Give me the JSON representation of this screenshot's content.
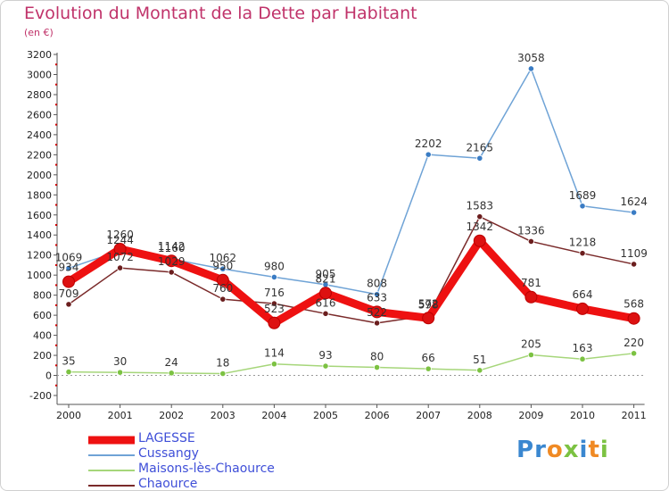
{
  "header": {
    "title": "Evolution du Montant de la Dette par Habitant",
    "subtitle": "(en €)"
  },
  "logo": {
    "text": "Proxiti",
    "letters": [
      {
        "ch": "P",
        "color": "#3a87d0"
      },
      {
        "ch": "r",
        "color": "#3a87d0"
      },
      {
        "ch": "o",
        "color": "#f08a24"
      },
      {
        "ch": "x",
        "color": "#7cc242"
      },
      {
        "ch": "i",
        "color": "#3a87d0"
      },
      {
        "ch": "t",
        "color": "#f08a24"
      },
      {
        "ch": "i",
        "color": "#7cc242"
      }
    ]
  },
  "chart_data": {
    "type": "line",
    "x": [
      "2000",
      "2001",
      "2002",
      "2003",
      "2004",
      "2005",
      "2006",
      "2007",
      "2008",
      "2009",
      "2010",
      "2011"
    ],
    "ylim": [
      -200,
      3200
    ],
    "yticks": [
      -200,
      0,
      200,
      400,
      600,
      800,
      1000,
      1200,
      1400,
      1600,
      1800,
      2000,
      2200,
      2400,
      2600,
      2800,
      3000,
      3200
    ],
    "grid": false,
    "legend_position": "bottom-left",
    "series": [
      {
        "name": "Cussangy",
        "color": "#6fa3d6",
        "marker": "#3a7cc4",
        "values": [
          1069,
          1244,
          1160,
          1062,
          980,
          905,
          808,
          2202,
          2165,
          3058,
          1689,
          1624
        ]
      },
      {
        "name": "Maisons-lès-Chaource",
        "color": "#a6d67a",
        "marker": "#7cc242",
        "values": [
          35,
          30,
          24,
          18,
          114,
          93,
          80,
          66,
          51,
          205,
          163,
          220
        ]
      },
      {
        "name": "Chaource",
        "color": "#7a2a2a",
        "marker": "#6b1e1e",
        "values": [
          709,
          1072,
          1029,
          760,
          716,
          616,
          522,
          598,
          1583,
          1336,
          1218,
          1109
        ]
      },
      {
        "name": "LAGESSE",
        "color": "#ee1111",
        "marker": "#dd1111",
        "values": [
          934,
          1260,
          1142,
          950,
          523,
          821,
          633,
          572,
          1342,
          781,
          664,
          568
        ]
      }
    ]
  }
}
